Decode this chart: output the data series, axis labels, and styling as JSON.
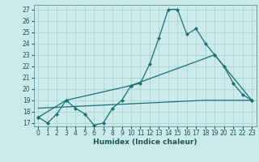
{
  "xlabel": "Humidex (Indice chaleur)",
  "bg_color": "#cceaea",
  "grid_color": "#aad4d4",
  "line_color": "#1a7070",
  "xlim": [
    -0.5,
    23.5
  ],
  "ylim": [
    16.7,
    27.4
  ],
  "xticks": [
    0,
    1,
    2,
    3,
    4,
    5,
    6,
    7,
    8,
    9,
    10,
    11,
    12,
    13,
    14,
    15,
    16,
    17,
    18,
    19,
    20,
    21,
    22,
    23
  ],
  "yticks": [
    17,
    18,
    19,
    20,
    21,
    22,
    23,
    24,
    25,
    26,
    27
  ],
  "series1_x": [
    0,
    1,
    2,
    3,
    4,
    5,
    6,
    7,
    8,
    9,
    10,
    11,
    12,
    13,
    14,
    15,
    16,
    17,
    18,
    19,
    20,
    21,
    22,
    23
  ],
  "series1_y": [
    17.5,
    17.0,
    17.8,
    19.0,
    18.3,
    17.8,
    16.8,
    17.0,
    18.3,
    19.0,
    20.3,
    20.5,
    22.2,
    24.5,
    27.0,
    27.0,
    24.8,
    25.3,
    24.0,
    23.0,
    22.0,
    20.5,
    19.5,
    19.0
  ],
  "series2_x": [
    0,
    3,
    10,
    19,
    23
  ],
  "series2_y": [
    17.5,
    19.0,
    20.3,
    23.0,
    19.0
  ],
  "series3_x": [
    0,
    18,
    23
  ],
  "series3_y": [
    18.3,
    19.0,
    19.0
  ],
  "tick_fontsize": 5.5,
  "xlabel_fontsize": 6.5
}
